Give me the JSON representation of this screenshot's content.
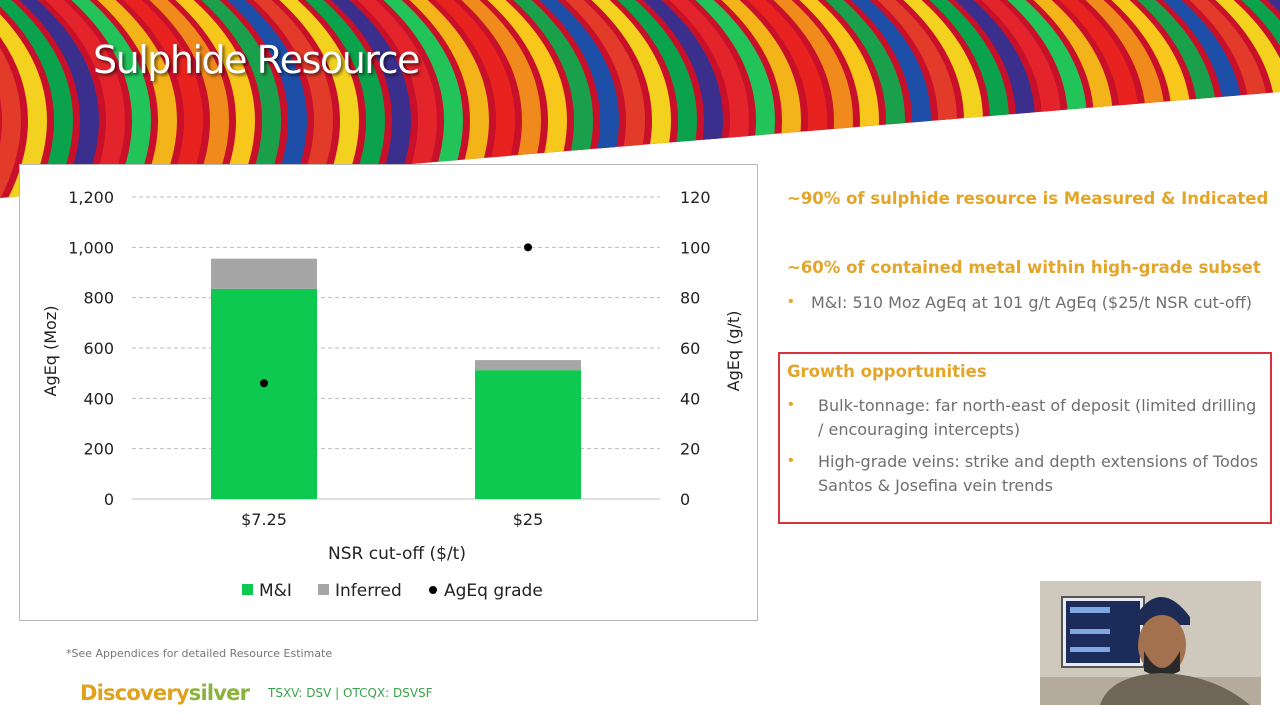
{
  "slide": {
    "title": "Sulphide Resource",
    "footnote": "*See Appendices for detailed Resource Estimate",
    "logo_part1": "Discovery",
    "logo_part2": "silver",
    "tickers": "TSXV: DSV  | OTCQX: DSVSF"
  },
  "side": {
    "headline1": "~90% of sulphide resource is Measured & Indicated",
    "headline2": "~60% of contained metal within high-grade subset",
    "bullet1": "M&I: 510 Moz AgEq at 101 g/t AgEq ($25/t NSR cut-off)",
    "growth_title": "Growth opportunities",
    "growth_bullets": [
      [
        "Bulk-tonnage: far north-east of deposit (limited drilling",
        "/ encouraging intercepts)"
      ],
      [
        "High-grade veins: strike and depth extensions of Todos",
        "Santos & Josefina vein trends"
      ]
    ]
  },
  "colors": {
    "accent": "#e3a52a",
    "mi": "#0dc94f",
    "inferred": "#a6a6a6",
    "grade_dot": "#000000",
    "growth_border": "#d8323c"
  },
  "chart_data": {
    "type": "bar",
    "stacked": true,
    "categories": [
      "$7.25",
      "$25"
    ],
    "series": [
      {
        "name": "M&I",
        "values": [
          835,
          512
        ],
        "color": "#0dc94f"
      },
      {
        "name": "Inferred",
        "values": [
          120,
          40
        ],
        "color": "#a6a6a6"
      }
    ],
    "secondary_series": {
      "name": "AgEq grade",
      "type": "scatter",
      "values": [
        46,
        100
      ],
      "color": "#000000"
    },
    "xlabel": "NSR cut-off ($/t)",
    "ylabel": "AgEq (Moz)",
    "y2label": "AgEq (g/t)",
    "ylim": [
      0,
      1200
    ],
    "y2lim": [
      0,
      120
    ],
    "yticks": [
      "0",
      "200",
      "400",
      "600",
      "800",
      "1,000",
      "1,200"
    ],
    "yticks_values": [
      0,
      200,
      400,
      600,
      800,
      1000,
      1200
    ],
    "y2ticks": [
      "0",
      "20",
      "40",
      "60",
      "80",
      "100",
      "120"
    ],
    "y2ticks_values": [
      0,
      20,
      40,
      60,
      80,
      100,
      120
    ],
    "grid": true,
    "legend_position": "bottom",
    "legend": [
      "M&I",
      "Inferred",
      "AgEq grade"
    ]
  }
}
